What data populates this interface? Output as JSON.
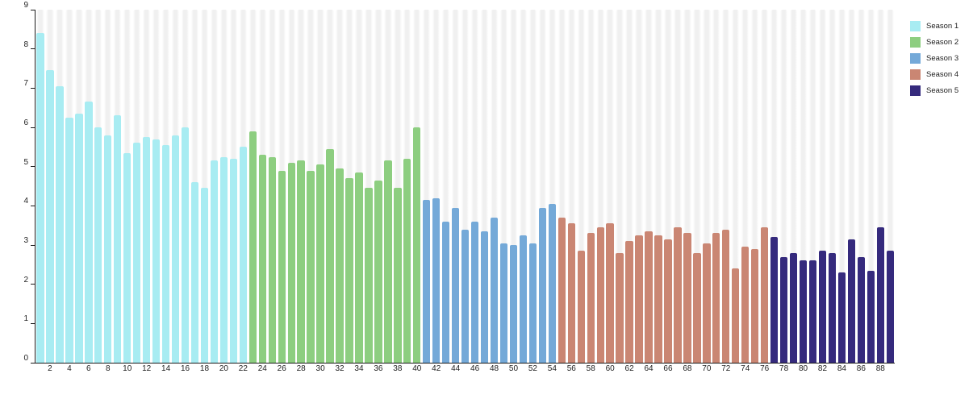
{
  "chart_data": {
    "type": "bar",
    "title": "",
    "xlabel": "",
    "ylabel": "",
    "ylim": [
      0,
      9
    ],
    "yticks": [
      0,
      1,
      2,
      3,
      4,
      5,
      6,
      7,
      8,
      9
    ],
    "xtick_step": 2,
    "xtick_labels": [
      "2",
      "4",
      "6",
      "8",
      "10",
      "12",
      "14",
      "16",
      "18",
      "20",
      "22",
      "24",
      "26",
      "28",
      "30",
      "32",
      "34",
      "36",
      "38",
      "40",
      "42",
      "44",
      "46",
      "48",
      "50",
      "52",
      "54",
      "56",
      "58",
      "60",
      "62",
      "64",
      "66",
      "68",
      "70",
      "72",
      "74",
      "76",
      "78",
      "80",
      "82",
      "84",
      "86",
      "88"
    ],
    "grid": false,
    "background_stripes": true,
    "stripe_color": "#f0f0f0",
    "axis_color": "#1a1a1a",
    "legend_position": "top-right",
    "legend_entries": [
      "Season 1",
      "Season 2",
      "Season 3",
      "Season 4",
      "Season 5"
    ],
    "seasons": [
      {
        "name": "Season 1",
        "color": "#a8ecf2",
        "start_episode": 1,
        "values": [
          8.4,
          7.45,
          7.05,
          6.25,
          6.35,
          6.65,
          6.0,
          5.8,
          6.3,
          5.35,
          5.6,
          5.75,
          5.7,
          5.55,
          5.8,
          6.0,
          4.6,
          4.45,
          5.15,
          5.25,
          5.2,
          5.5
        ]
      },
      {
        "name": "Season 2",
        "color": "#8dce80",
        "start_episode": 23,
        "values": [
          5.9,
          5.3,
          5.25,
          4.9,
          5.1,
          5.15,
          4.9,
          5.05,
          5.45,
          4.95,
          4.7,
          4.85,
          4.45,
          4.65,
          5.15,
          4.45,
          5.2,
          6.0
        ]
      },
      {
        "name": "Season 3",
        "color": "#74a9d8",
        "start_episode": 41,
        "values": [
          4.15,
          4.2,
          3.6,
          3.95,
          3.4,
          3.6,
          3.35,
          3.7,
          3.05,
          3.0,
          3.25,
          3.05,
          3.95,
          4.05
        ]
      },
      {
        "name": "Season 4",
        "color": "#ca8673",
        "start_episode": 55,
        "values": [
          3.7,
          3.55,
          2.85,
          3.3,
          3.45,
          3.55,
          2.8,
          3.1,
          3.25,
          3.35,
          3.25,
          3.15,
          3.45,
          3.3,
          2.8,
          3.05,
          3.3,
          3.4,
          2.4,
          2.95,
          2.9,
          3.45
        ]
      },
      {
        "name": "Season 5",
        "color": "#352a7d",
        "start_episode": 77,
        "values": [
          3.2,
          2.7,
          2.8,
          2.6,
          2.6,
          2.85,
          2.8,
          2.3,
          3.15,
          2.7,
          2.35,
          3.45,
          2.85
        ]
      }
    ]
  }
}
